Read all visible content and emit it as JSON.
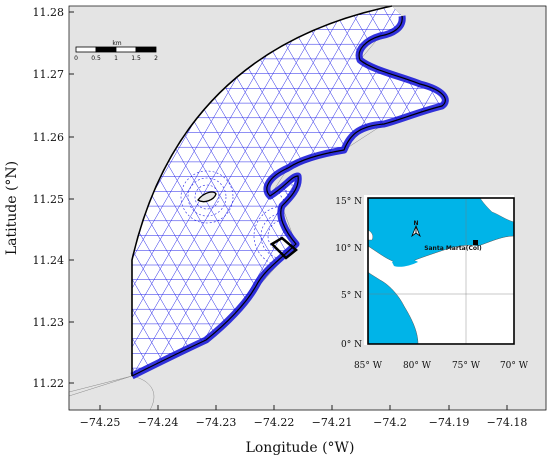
{
  "axes": {
    "xlabel": "Longitude (°W)",
    "ylabel": "Latitude (°N)",
    "x_ticks": [
      "−74.25",
      "−74.24",
      "−74.23",
      "−74.22",
      "−74.21",
      "−74.2",
      "−74.19",
      "−74.18"
    ],
    "y_ticks": [
      "11.28",
      "11.27",
      "11.26",
      "11.25",
      "11.24",
      "11.23",
      "11.22"
    ]
  },
  "scale_bar": {
    "unit": "km",
    "labels": [
      "0",
      "0.5",
      "1",
      "1.5",
      "2"
    ]
  },
  "inset": {
    "location_label": "Santa Marta(Col)",
    "north_label": "N",
    "x_ticks": [
      "85° W",
      "80° W",
      "75° W",
      "70° W"
    ],
    "y_ticks": [
      "15° N",
      "10° N",
      "5° N",
      "0° N"
    ]
  },
  "colors": {
    "sea": "#00b4e8",
    "land": "#e4e4e4",
    "mesh": "#2323e8",
    "boundary": "#000000"
  }
}
